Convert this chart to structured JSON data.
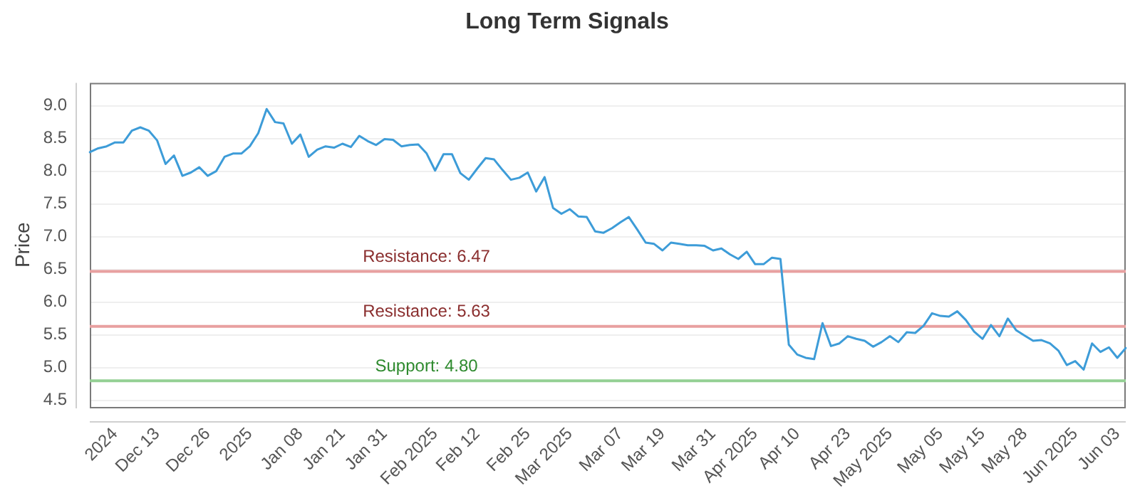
{
  "chart_data": {
    "type": "line",
    "title": "Long Term Signals",
    "ylabel": "Price",
    "categories": [
      null,
      null,
      null,
      "2024",
      null,
      null,
      null,
      null,
      "Dec 13",
      null,
      null,
      null,
      null,
      null,
      "Dec 26",
      null,
      null,
      null,
      null,
      "2025",
      null,
      null,
      null,
      null,
      null,
      "Jan 08",
      null,
      null,
      null,
      null,
      "Jan 21",
      null,
      null,
      null,
      null,
      "Jan 31",
      null,
      null,
      null,
      null,
      null,
      "Feb 2025",
      null,
      null,
      null,
      null,
      "Feb 12",
      null,
      null,
      null,
      null,
      null,
      "Feb 25",
      null,
      null,
      null,
      null,
      "Mar 2025",
      null,
      null,
      null,
      null,
      null,
      "Mar 07",
      null,
      null,
      null,
      null,
      "Mar 19",
      null,
      null,
      null,
      null,
      null,
      "Mar 31",
      null,
      null,
      null,
      null,
      "Apr 2025",
      null,
      null,
      null,
      null,
      "Apr 10",
      null,
      null,
      null,
      null,
      null,
      "Apr 23",
      null,
      null,
      null,
      null,
      "May 2025",
      null,
      null,
      null,
      null,
      null,
      "May 05",
      null,
      null,
      null,
      null,
      "May 15",
      null,
      null,
      null,
      null,
      "May 28",
      null,
      null,
      null,
      null,
      null,
      "Jun 2025",
      null,
      null,
      null,
      null,
      "Jun 03",
      null
    ],
    "values": [
      8.29,
      8.35,
      8.38,
      8.44,
      8.44,
      8.62,
      8.67,
      8.62,
      8.47,
      8.11,
      8.24,
      7.93,
      7.98,
      8.06,
      7.93,
      8.0,
      8.22,
      8.27,
      8.27,
      8.38,
      8.58,
      8.95,
      8.75,
      8.73,
      8.42,
      8.56,
      8.22,
      8.33,
      8.38,
      8.36,
      8.42,
      8.37,
      8.54,
      8.46,
      8.4,
      8.49,
      8.48,
      8.38,
      8.4,
      8.41,
      8.27,
      8.01,
      8.26,
      8.26,
      7.97,
      7.87,
      8.04,
      8.2,
      8.18,
      8.02,
      7.87,
      7.9,
      7.98,
      7.69,
      7.91,
      7.44,
      7.35,
      7.42,
      7.31,
      7.3,
      7.08,
      7.06,
      7.13,
      7.22,
      7.3,
      7.11,
      6.91,
      6.89,
      6.79,
      6.91,
      6.89,
      6.87,
      6.87,
      6.86,
      6.79,
      6.82,
      6.73,
      6.66,
      6.77,
      6.58,
      6.58,
      6.68,
      6.66,
      5.35,
      5.2,
      5.15,
      5.13,
      5.68,
      5.33,
      5.37,
      5.48,
      5.44,
      5.41,
      5.32,
      5.39,
      5.48,
      5.39,
      5.54,
      5.53,
      5.64,
      5.83,
      5.79,
      5.78,
      5.86,
      5.73,
      5.55,
      5.44,
      5.65,
      5.48,
      5.75,
      5.57,
      5.49,
      5.41,
      5.42,
      5.37,
      5.26,
      5.04,
      5.1,
      4.97,
      5.37,
      5.24,
      5.31,
      5.15,
      5.3
    ],
    "color": "#3d9cd8",
    "ylim": [
      4.4,
      9.35
    ],
    "yticks": [
      4.5,
      {
        "value": 5,
        "label": "5.0"
      },
      5.5,
      {
        "value": 6,
        "label": "6.0"
      },
      6.5,
      {
        "value": 7,
        "label": "7.0"
      },
      7.5,
      {
        "value": 8,
        "label": "8.0"
      },
      8.5,
      {
        "value": 9,
        "label": "9.0"
      }
    ],
    "grid": "y",
    "ref_lines": [
      {
        "axis": "y",
        "value": 6.47,
        "label": "Resistance: 6.47",
        "color": "#e8a0a0"
      },
      {
        "axis": "y",
        "value": 5.63,
        "label": "Resistance: 5.63",
        "color": "#e8a0a0"
      },
      {
        "axis": "y",
        "value": 4.8,
        "label": "Support: 4.80",
        "color": "#94d094"
      }
    ]
  }
}
